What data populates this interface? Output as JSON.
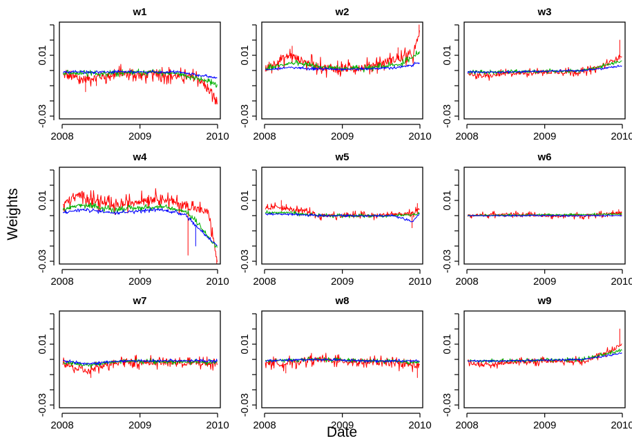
{
  "chart_data": {
    "type": "line",
    "layout": "3x3 small multiples",
    "xlabel": "Date",
    "ylabel": "Weights",
    "x_ticks": [
      "2008",
      "2009",
      "2010"
    ],
    "y_ticks": [
      "-0.03",
      "0.01"
    ],
    "y_ticks_unlabeled": [
      -0.02,
      -0.01,
      0.0,
      0.02,
      0.03
    ],
    "xlim": [
      "2008-01-01",
      "2010-01-01"
    ],
    "ylim": [
      -0.03,
      0.03
    ],
    "series_colors": [
      "#ff0000",
      "#00b000",
      "#0000ff"
    ],
    "sample_points": 48,
    "panels": [
      {
        "title": "w1",
        "series": [
          {
            "color": "#ff0000",
            "x": [
              "2008-01-05",
              "2008-04-01",
              "2008-07-01",
              "2008-10-01",
              "2009-01-01",
              "2009-04-01",
              "2009-07-01",
              "2009-10-01",
              "2009-12-30"
            ],
            "y": [
              -0.003,
              -0.006,
              -0.004,
              -0.002,
              -0.003,
              -0.002,
              -0.004,
              -0.005,
              -0.02
            ],
            "noise": 0.004,
            "spikes": [
              [
                "2008-04-20",
                -0.014
              ],
              [
                "2008-06-10",
                -0.01
              ],
              [
                "2009-12-20",
                -0.022
              ]
            ]
          },
          {
            "color": "#00b000",
            "x": [
              "2008-01-05",
              "2008-07-01",
              "2009-01-01",
              "2009-07-01",
              "2009-12-30"
            ],
            "y": [
              -0.002,
              -0.002,
              -0.001,
              -0.002,
              -0.009
            ],
            "noise": 0.0015
          },
          {
            "color": "#0000ff",
            "x": [
              "2008-01-05",
              "2008-07-01",
              "2009-01-01",
              "2009-07-01",
              "2009-12-30"
            ],
            "y": [
              -0.001,
              -0.001,
              -0.001,
              -0.001,
              -0.005
            ],
            "noise": 0.0008
          }
        ]
      },
      {
        "title": "w2",
        "series": [
          {
            "color": "#ff0000",
            "x": [
              "2008-01-05",
              "2008-03-01",
              "2008-05-01",
              "2008-07-01",
              "2008-10-01",
              "2009-01-01",
              "2009-04-01",
              "2009-07-01",
              "2009-10-01",
              "2009-12-01",
              "2009-12-30"
            ],
            "y": [
              0.001,
              0.006,
              0.01,
              0.006,
              0.002,
              0.001,
              0.002,
              0.005,
              0.008,
              0.01,
              0.025
            ],
            "noise": 0.004,
            "spikes": [
              [
                "2008-05-10",
                0.016
              ],
              [
                "2009-09-20",
                0.015
              ],
              [
                "2009-12-28",
                0.03
              ]
            ]
          },
          {
            "color": "#00b000",
            "x": [
              "2008-01-05",
              "2008-05-01",
              "2008-10-01",
              "2009-04-01",
              "2009-10-01",
              "2009-12-30"
            ],
            "y": [
              0.001,
              0.005,
              0.002,
              0.001,
              0.004,
              0.012
            ],
            "noise": 0.0015
          },
          {
            "color": "#0000ff",
            "x": [
              "2008-01-05",
              "2008-05-01",
              "2008-10-01",
              "2009-04-01",
              "2009-10-01",
              "2009-12-30"
            ],
            "y": [
              0.0005,
              0.002,
              0.001,
              0.001,
              0.002,
              0.005
            ],
            "noise": 0.0008
          }
        ]
      },
      {
        "title": "w3",
        "series": [
          {
            "color": "#ff0000",
            "x": [
              "2008-01-05",
              "2008-04-01",
              "2008-07-01",
              "2009-01-01",
              "2009-07-01",
              "2009-10-01",
              "2009-12-30"
            ],
            "y": [
              -0.002,
              -0.004,
              -0.002,
              -0.001,
              -0.001,
              0.003,
              0.01
            ],
            "noise": 0.002,
            "spikes": [
              [
                "2009-12-20",
                0.02
              ]
            ]
          },
          {
            "color": "#00b000",
            "x": [
              "2008-01-05",
              "2008-07-01",
              "2009-07-01",
              "2009-12-30"
            ],
            "y": [
              -0.001,
              -0.001,
              0.0,
              0.006
            ],
            "noise": 0.001
          },
          {
            "color": "#0000ff",
            "x": [
              "2008-01-05",
              "2008-07-01",
              "2009-07-01",
              "2009-12-30"
            ],
            "y": [
              -0.001,
              -0.001,
              0.0,
              0.003
            ],
            "noise": 0.0006
          }
        ]
      },
      {
        "title": "w4",
        "series": [
          {
            "color": "#ff0000",
            "x": [
              "2008-01-05",
              "2008-02-01",
              "2008-04-01",
              "2008-06-01",
              "2008-09-01",
              "2009-01-01",
              "2009-04-01",
              "2009-06-01",
              "2009-08-01",
              "2009-10-01",
              "2009-11-20",
              "2009-12-30"
            ],
            "y": [
              0.006,
              0.01,
              0.014,
              0.01,
              0.006,
              0.01,
              0.012,
              0.009,
              0.007,
              0.004,
              0.002,
              -0.03
            ],
            "noise": 0.004,
            "spikes": [
              [
                "2009-08-15",
                -0.026
              ],
              [
                "2009-12-28",
                -0.035
              ]
            ]
          },
          {
            "color": "#00b000",
            "x": [
              "2008-01-05",
              "2008-04-01",
              "2008-09-01",
              "2009-04-01",
              "2009-08-01",
              "2009-10-01",
              "2009-12-30"
            ],
            "y": [
              0.004,
              0.007,
              0.004,
              0.006,
              0.003,
              -0.005,
              -0.022
            ],
            "noise": 0.0015
          },
          {
            "color": "#0000ff",
            "x": [
              "2008-01-05",
              "2008-04-01",
              "2008-09-01",
              "2009-04-01",
              "2009-08-01",
              "2009-10-01",
              "2009-12-30"
            ],
            "y": [
              0.002,
              0.004,
              0.002,
              0.004,
              0.001,
              -0.008,
              -0.02
            ],
            "noise": 0.001,
            "spikes": [
              [
                "2009-09-20",
                -0.02
              ]
            ]
          }
        ]
      },
      {
        "title": "w5",
        "series": [
          {
            "color": "#ff0000",
            "x": [
              "2008-01-05",
              "2008-03-01",
              "2008-05-01",
              "2008-08-15",
              "2008-09-01",
              "2009-06-01",
              "2009-09-01",
              "2009-11-20",
              "2009-12-30"
            ],
            "y": [
              0.004,
              0.006,
              0.004,
              0.002,
              0.0,
              0.0,
              0.001,
              0.001,
              0.004
            ],
            "noise": 0.002,
            "spikes": [
              [
                "2008-03-20",
                0.01
              ],
              [
                "2009-11-25",
                -0.008
              ],
              [
                "2009-12-20",
                0.008
              ]
            ]
          },
          {
            "color": "#00b000",
            "x": [
              "2008-01-05",
              "2008-05-01",
              "2008-09-01",
              "2009-09-01",
              "2009-12-30"
            ],
            "y": [
              0.002,
              0.002,
              0.0,
              0.0,
              0.001
            ],
            "noise": 0.001
          },
          {
            "color": "#0000ff",
            "x": [
              "2008-01-05",
              "2008-05-01",
              "2008-09-01",
              "2009-09-01",
              "2009-11-25",
              "2009-12-30"
            ],
            "y": [
              0.001,
              0.001,
              0.0,
              0.0,
              -0.004,
              0.001
            ],
            "noise": 0.0006
          }
        ]
      },
      {
        "title": "w6",
        "series": [
          {
            "color": "#ff0000",
            "x": [
              "2008-01-05",
              "2008-07-01",
              "2009-01-01",
              "2009-07-01",
              "2009-12-30"
            ],
            "y": [
              0.0,
              0.001,
              0.0,
              0.0,
              0.002
            ],
            "noise": 0.0015,
            "spikes": [
              [
                "2009-12-15",
                0.004
              ]
            ]
          },
          {
            "color": "#00b000",
            "x": [
              "2008-01-05",
              "2009-12-30"
            ],
            "y": [
              0.0,
              0.001
            ],
            "noise": 0.0006
          },
          {
            "color": "#0000ff",
            "x": [
              "2008-01-05",
              "2009-12-30"
            ],
            "y": [
              0.0,
              0.0
            ],
            "noise": 0.0004
          }
        ]
      },
      {
        "title": "w7",
        "series": [
          {
            "color": "#ff0000",
            "x": [
              "2008-01-05",
              "2008-03-01",
              "2008-05-01",
              "2008-08-01",
              "2008-10-01",
              "2009-01-01",
              "2009-06-01",
              "2009-12-30"
            ],
            "y": [
              -0.002,
              -0.006,
              -0.008,
              -0.003,
              -0.001,
              -0.002,
              -0.002,
              -0.003
            ],
            "noise": 0.003,
            "spikes": [
              [
                "2008-05-15",
                -0.012
              ]
            ]
          },
          {
            "color": "#00b000",
            "x": [
              "2008-01-05",
              "2008-05-01",
              "2008-10-01",
              "2009-12-30"
            ],
            "y": [
              -0.002,
              -0.004,
              -0.001,
              -0.002
            ],
            "noise": 0.0012
          },
          {
            "color": "#0000ff",
            "x": [
              "2008-01-05",
              "2008-05-01",
              "2008-10-01",
              "2009-12-30"
            ],
            "y": [
              -0.001,
              -0.003,
              -0.001,
              -0.001
            ],
            "noise": 0.0008
          }
        ]
      },
      {
        "title": "w8",
        "series": [
          {
            "color": "#ff0000",
            "x": [
              "2008-01-05",
              "2008-04-01",
              "2008-08-01",
              "2009-01-01",
              "2009-06-01",
              "2009-10-01",
              "2009-12-30"
            ],
            "y": [
              -0.002,
              -0.003,
              0.0,
              -0.001,
              -0.002,
              -0.003,
              -0.004
            ],
            "noise": 0.003,
            "spikes": [
              [
                "2008-04-10",
                -0.009
              ],
              [
                "2009-12-20",
                -0.012
              ]
            ]
          },
          {
            "color": "#00b000",
            "x": [
              "2008-01-05",
              "2008-08-01",
              "2009-06-01",
              "2009-12-30"
            ],
            "y": [
              -0.001,
              0.0,
              -0.001,
              -0.002
            ],
            "noise": 0.001
          },
          {
            "color": "#0000ff",
            "x": [
              "2008-01-05",
              "2008-08-01",
              "2009-06-01",
              "2009-12-30"
            ],
            "y": [
              -0.001,
              0.0,
              -0.001,
              -0.001
            ],
            "noise": 0.0007
          }
        ]
      },
      {
        "title": "w9",
        "series": [
          {
            "color": "#ff0000",
            "x": [
              "2008-01-05",
              "2008-04-01",
              "2008-07-01",
              "2009-01-01",
              "2009-07-01",
              "2009-10-01",
              "2009-12-30"
            ],
            "y": [
              -0.002,
              -0.004,
              -0.002,
              -0.001,
              -0.001,
              0.003,
              0.01
            ],
            "noise": 0.002,
            "spikes": [
              [
                "2009-12-20",
                0.02
              ]
            ]
          },
          {
            "color": "#00b000",
            "x": [
              "2008-01-05",
              "2008-07-01",
              "2009-07-01",
              "2009-12-30"
            ],
            "y": [
              -0.001,
              -0.001,
              0.0,
              0.006
            ],
            "noise": 0.001
          },
          {
            "color": "#0000ff",
            "x": [
              "2008-01-05",
              "2008-07-01",
              "2009-07-01",
              "2009-12-30"
            ],
            "y": [
              -0.001,
              -0.001,
              0.0,
              0.004
            ],
            "noise": 0.0006
          }
        ]
      }
    ]
  }
}
